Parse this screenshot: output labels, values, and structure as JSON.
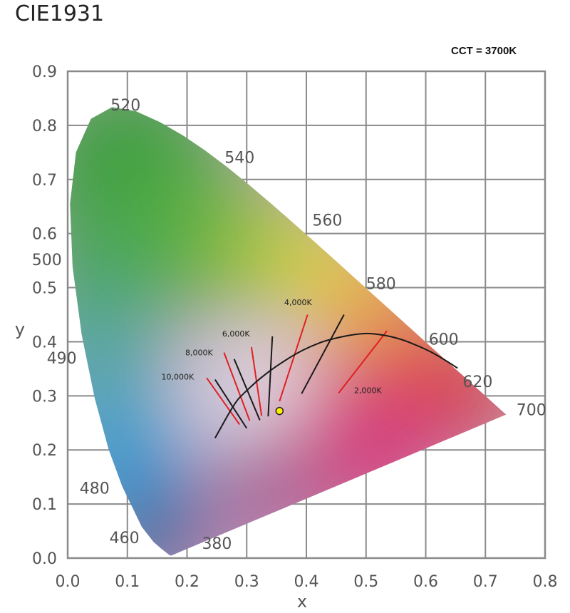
{
  "title": "CIE1931",
  "cct_readout": "CCT = 3700K",
  "chart_data": {
    "type": "scatter",
    "title": "CIE1931",
    "xlabel": "x",
    "ylabel": "y",
    "xlim": [
      0.0,
      0.8
    ],
    "ylim": [
      0.0,
      0.9
    ],
    "x_ticks": [
      "0.0",
      "0.1",
      "0.2",
      "0.3",
      "0.4",
      "0.5",
      "0.6",
      "0.7",
      "0.8"
    ],
    "y_ticks": [
      "0.0",
      "0.1",
      "0.2",
      "0.3",
      "0.4",
      "0.5",
      "0.6",
      "0.7",
      "0.8",
      "0.9"
    ],
    "grid": true,
    "spectral_locus": [
      [
        0.1741,
        0.005
      ],
      [
        0.1733,
        0.0048
      ],
      [
        0.1714,
        0.0051
      ],
      [
        0.1689,
        0.0069
      ],
      [
        0.1644,
        0.0109
      ],
      [
        0.1566,
        0.0177
      ],
      [
        0.144,
        0.0297
      ],
      [
        0.1241,
        0.0578
      ],
      [
        0.0913,
        0.1327
      ],
      [
        0.0687,
        0.2007
      ],
      [
        0.0454,
        0.295
      ],
      [
        0.0235,
        0.4127
      ],
      [
        0.0082,
        0.5384
      ],
      [
        0.0039,
        0.6548
      ],
      [
        0.0139,
        0.7502
      ],
      [
        0.0389,
        0.812
      ],
      [
        0.0743,
        0.8338
      ],
      [
        0.1142,
        0.8262
      ],
      [
        0.1547,
        0.8059
      ],
      [
        0.1929,
        0.7816
      ],
      [
        0.2296,
        0.7543
      ],
      [
        0.2658,
        0.7243
      ],
      [
        0.3016,
        0.6923
      ],
      [
        0.3373,
        0.6589
      ],
      [
        0.3731,
        0.6245
      ],
      [
        0.4087,
        0.5896
      ],
      [
        0.4441,
        0.5547
      ],
      [
        0.4788,
        0.5202
      ],
      [
        0.5125,
        0.4866
      ],
      [
        0.5448,
        0.4544
      ],
      [
        0.5752,
        0.4242
      ],
      [
        0.6029,
        0.3965
      ],
      [
        0.627,
        0.3725
      ],
      [
        0.6482,
        0.3514
      ],
      [
        0.6658,
        0.334
      ],
      [
        0.6801,
        0.3197
      ],
      [
        0.6915,
        0.3083
      ],
      [
        0.7006,
        0.2993
      ],
      [
        0.7079,
        0.292
      ],
      [
        0.714,
        0.2859
      ],
      [
        0.7347,
        0.2653
      ]
    ],
    "wavelength_labels": [
      {
        "label": "520",
        "x": 0.072,
        "y": 0.838
      },
      {
        "label": "540",
        "x": 0.263,
        "y": 0.741
      },
      {
        "label": "560",
        "x": 0.41,
        "y": 0.625
      },
      {
        "label": "580",
        "x": 0.5,
        "y": 0.508
      },
      {
        "label": "600",
        "x": 0.605,
        "y": 0.405
      },
      {
        "label": "620",
        "x": 0.662,
        "y": 0.327
      },
      {
        "label": "700",
        "x": 0.752,
        "y": 0.275
      },
      {
        "label": "500",
        "x": -0.06,
        "y": 0.552
      },
      {
        "label": "490",
        "x": -0.035,
        "y": 0.37
      },
      {
        "label": "480",
        "x": 0.02,
        "y": 0.13
      },
      {
        "label": "460",
        "x": 0.07,
        "y": 0.038
      },
      {
        "label": "380",
        "x": 0.225,
        "y": 0.028
      }
    ],
    "planckian_locus": [
      [
        0.247,
        0.222
      ],
      [
        0.2806,
        0.2883
      ],
      [
        0.2952,
        0.3048
      ],
      [
        0.3135,
        0.3236
      ],
      [
        0.3221,
        0.3318
      ],
      [
        0.3451,
        0.3516
      ],
      [
        0.3805,
        0.3768
      ],
      [
        0.4073,
        0.3917
      ],
      [
        0.4369,
        0.4041
      ],
      [
        0.4923,
        0.4165
      ],
      [
        0.5267,
        0.4133
      ],
      [
        0.5586,
        0.405
      ],
      [
        0.5857,
        0.3931
      ],
      [
        0.6097,
        0.381
      ],
      [
        0.633,
        0.3658
      ],
      [
        0.6533,
        0.3512
      ]
    ],
    "cct_labels": [
      {
        "label": "10,000K",
        "x": 0.157,
        "y": 0.33
      },
      {
        "label": "8,000K",
        "x": 0.197,
        "y": 0.375
      },
      {
        "label": "6,000K",
        "x": 0.259,
        "y": 0.41
      },
      {
        "label": "4,000K",
        "x": 0.363,
        "y": 0.468
      },
      {
        "label": "2,000K",
        "x": 0.48,
        "y": 0.305
      }
    ],
    "isotherms_black": [
      [
        [
          0.247,
          0.33
        ],
        [
          0.3,
          0.24
        ]
      ],
      [
        [
          0.279,
          0.368
        ],
        [
          0.322,
          0.255
        ]
      ],
      [
        [
          0.343,
          0.41
        ],
        [
          0.336,
          0.262
        ]
      ],
      [
        [
          0.463,
          0.45
        ],
        [
          0.392,
          0.304
        ]
      ]
    ],
    "isotherms_red": [
      [
        [
          0.233,
          0.333
        ],
        [
          0.288,
          0.247
        ]
      ],
      [
        [
          0.262,
          0.38
        ],
        [
          0.305,
          0.254
        ]
      ],
      [
        [
          0.308,
          0.39
        ],
        [
          0.325,
          0.263
        ]
      ],
      [
        [
          0.402,
          0.45
        ],
        [
          0.355,
          0.29
        ]
      ],
      [
        [
          0.535,
          0.42
        ],
        [
          0.454,
          0.305
        ]
      ]
    ],
    "marker": {
      "x": 0.355,
      "y": 0.272,
      "color": "#ffee00"
    }
  }
}
